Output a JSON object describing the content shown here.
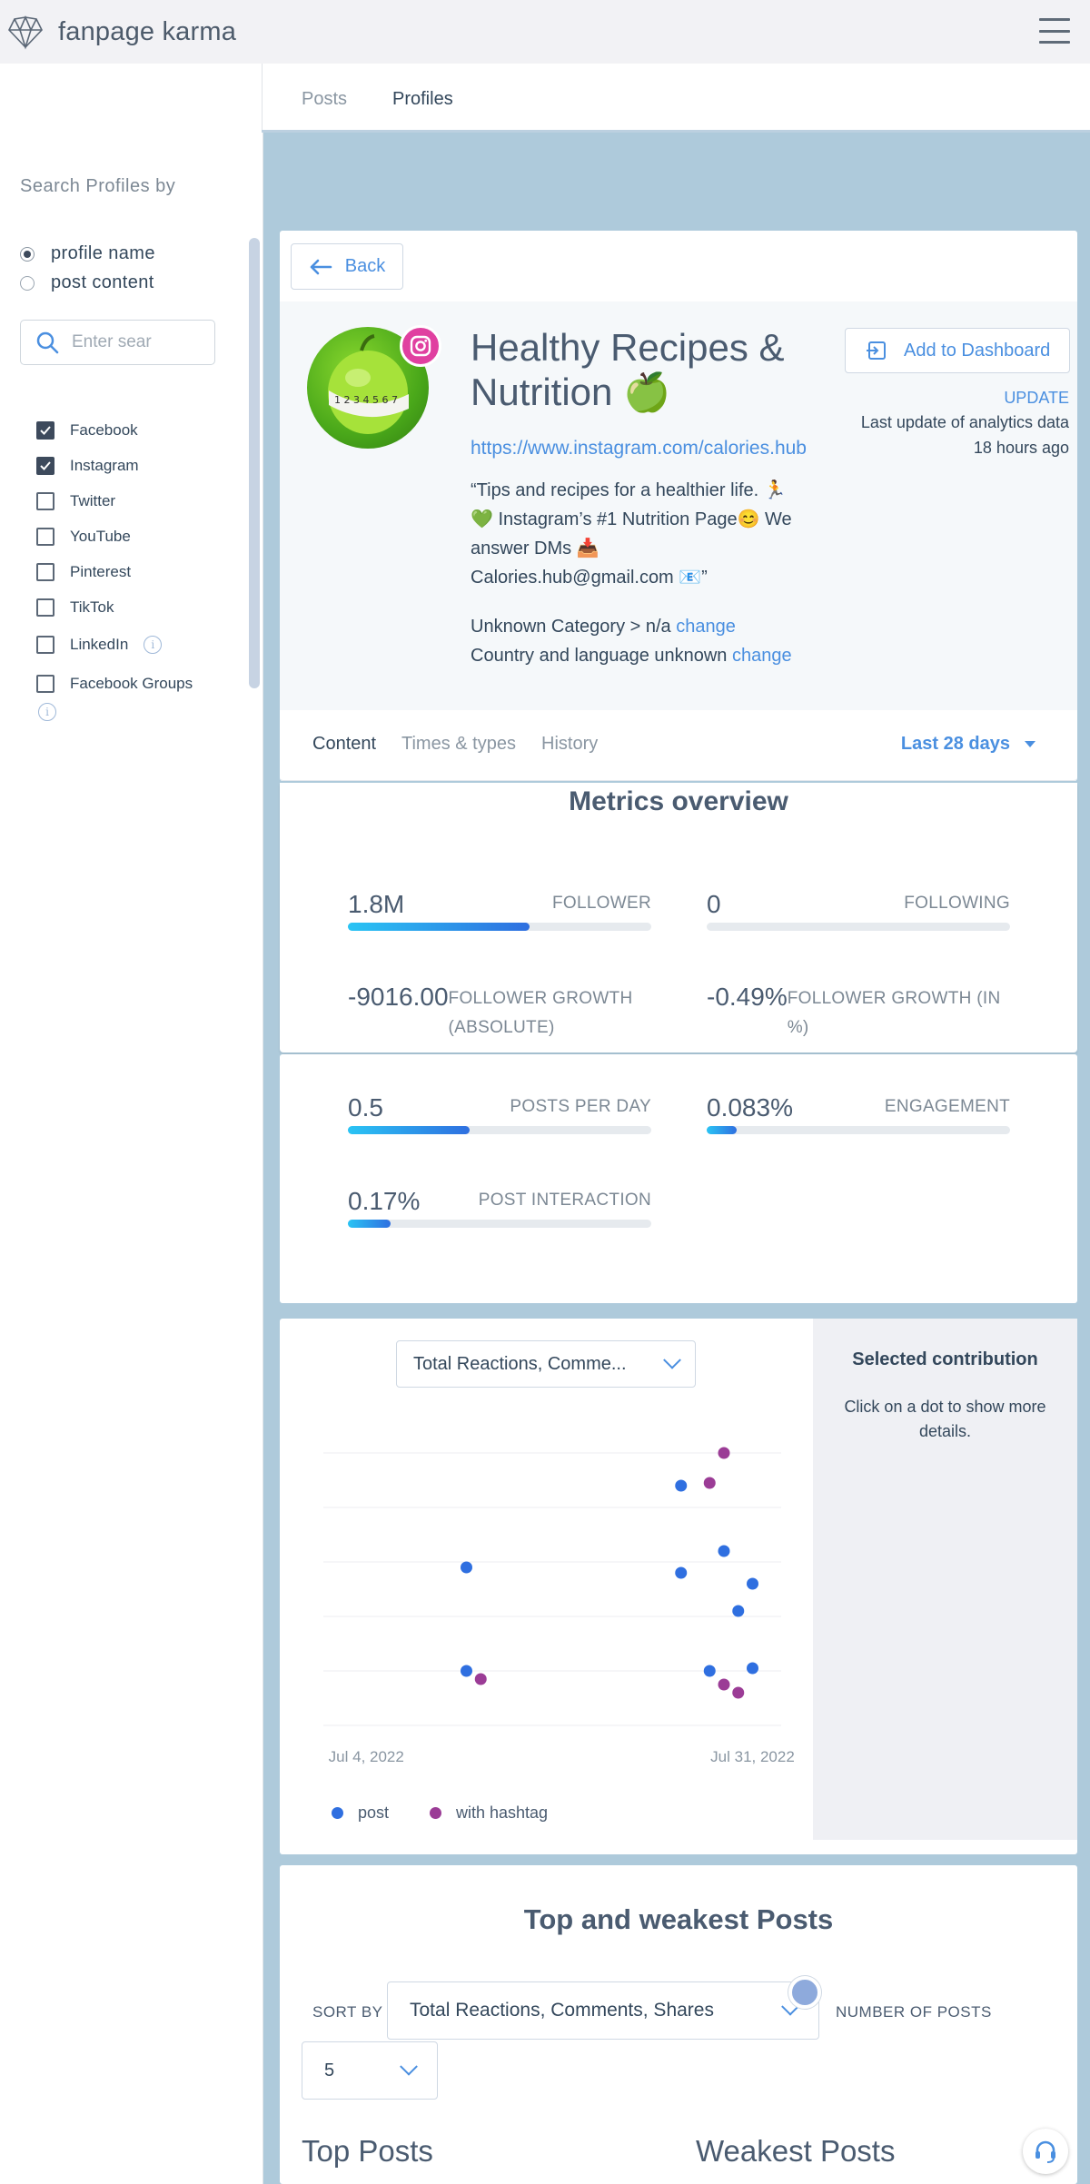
{
  "app": {
    "name": "fanpage karma"
  },
  "nav": {
    "tabs": [
      {
        "label": "Posts"
      },
      {
        "label": "Profiles"
      }
    ],
    "active": "Profiles"
  },
  "sidebar": {
    "title": "Search Profiles by",
    "radios": [
      {
        "label": "profile name",
        "selected": true
      },
      {
        "label": "post content",
        "selected": false
      }
    ],
    "search": {
      "placeholder": "Enter sear",
      "value": ""
    },
    "networks": [
      {
        "label": "Facebook",
        "checked": true
      },
      {
        "label": "Instagram",
        "checked": true
      },
      {
        "label": "Twitter",
        "checked": false
      },
      {
        "label": "YouTube",
        "checked": false
      },
      {
        "label": "Pinterest",
        "checked": false
      },
      {
        "label": "TikTok",
        "checked": false
      },
      {
        "label": "LinkedIn",
        "checked": false
      },
      {
        "label": "Facebook Groups",
        "checked": false
      }
    ]
  },
  "profile": {
    "back_label": "Back",
    "name_line1": "Healthy Recipes &",
    "name_line2": "Nutrition 🍏",
    "url": "https://www.instagram.com/calories.hub",
    "bio_line1": "“Tips and recipes for a healthier life. 🏃",
    "bio_line2": "💚 Instagram’s #1 Nutrition Page😊 We",
    "bio_line3": "answer DMs 📥",
    "bio_line4": "Calories.hub@gmail.com 📧”",
    "category_text": "Unknown Category > n/a",
    "country_text": "Country and language unknown",
    "change_label": "change",
    "add_dashboard_label": "Add to Dashboard",
    "update_label": "UPDATE",
    "last_update_label": "Last update of analytics data",
    "last_update_value": "18 hours ago",
    "avatar_scale_text": "1 2 3 4 5 6 7"
  },
  "subtabs": {
    "items": [
      "Content",
      "Times & types",
      "History"
    ],
    "active": "Content",
    "range_label": "Last 28 days"
  },
  "metrics": {
    "title": "Metrics overview",
    "follower": {
      "value": "1.8M",
      "label": "FOLLOWER",
      "fill": 0.6
    },
    "following": {
      "value": "0",
      "label": "FOLLOWING",
      "fill": 0
    },
    "follower_growth_abs": {
      "value": "-9016.00",
      "label": "FOLLOWER GROWTH (ABSOLUTE)"
    },
    "follower_growth_pct": {
      "value": "-0.49%",
      "label": "FOLLOWER GROWTH (IN %)"
    },
    "posts_per_day": {
      "value": "0.5",
      "label": "POSTS PER DAY",
      "fill": 0.4
    },
    "engagement": {
      "value": "0.083%",
      "label": "ENGAGEMENT",
      "fill": 0.1
    },
    "post_interaction": {
      "value": "0.17%",
      "label": "POST INTERACTION",
      "fill": 0.14
    }
  },
  "chart": {
    "metric_select": "Total Reactions, Comme...",
    "selected_title": "Selected contribution",
    "selected_text": "Click on a dot to show more details.",
    "legend": [
      {
        "name": "post",
        "color": "#2f6fe0"
      },
      {
        "name": "with hashtag",
        "color": "#9b3c96"
      }
    ]
  },
  "chart_data": {
    "type": "scatter",
    "x_tick_labels": [
      "Jul 4, 2022",
      "Jul 31, 2022"
    ],
    "xlim": [
      "2022-07-01",
      "2022-08-02"
    ],
    "ylim": [
      0,
      5
    ],
    "grid": true,
    "legend_position": "bottom-left",
    "series": [
      {
        "name": "post",
        "color": "#2f6fe0",
        "points": [
          {
            "x": "2022-07-11",
            "y": 2.9
          },
          {
            "x": "2022-07-11",
            "y": 1.0
          },
          {
            "x": "2022-07-26",
            "y": 4.4
          },
          {
            "x": "2022-07-26",
            "y": 2.8
          },
          {
            "x": "2022-07-28",
            "y": 1.0
          },
          {
            "x": "2022-07-29",
            "y": 3.2
          },
          {
            "x": "2022-07-30",
            "y": 2.1
          },
          {
            "x": "2022-07-31",
            "y": 2.6
          },
          {
            "x": "2022-07-31",
            "y": 1.05
          }
        ]
      },
      {
        "name": "with hashtag",
        "color": "#9b3c96",
        "points": [
          {
            "x": "2022-07-12",
            "y": 0.85
          },
          {
            "x": "2022-07-28",
            "y": 4.45
          },
          {
            "x": "2022-07-29",
            "y": 5.0
          },
          {
            "x": "2022-07-29",
            "y": 0.75
          },
          {
            "x": "2022-07-30",
            "y": 0.6
          }
        ]
      }
    ]
  },
  "posts": {
    "title": "Top and weakest Posts",
    "sort_label": "SORT BY",
    "sort_value": "Total Reactions, Comments, Shares",
    "number_label": "NUMBER OF POSTS",
    "number_value": "5",
    "top_heading": "Top Posts",
    "weak_heading": "Weakest Posts"
  },
  "colors": {
    "accent": "#4a8fe0",
    "background": "#aecadb",
    "instagram": "#e040a0"
  }
}
